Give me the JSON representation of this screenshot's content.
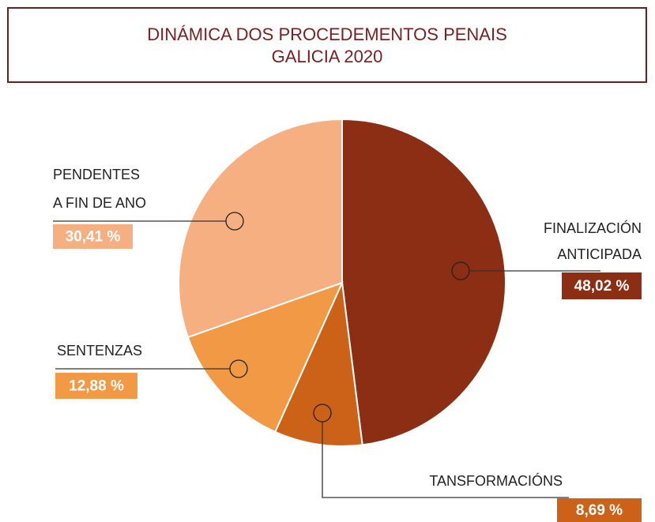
{
  "chart_data": {
    "type": "pie",
    "title": "DINÁMICA DOS PROCEDEMENTOS PENAIS",
    "subtitle": "GALICIA 2020",
    "categories": [
      [
        "FINALIZACIÓN",
        "ANTICIPADA"
      ],
      [
        "TANSFORMACIÓNS"
      ],
      [
        "SENTENZAS"
      ],
      [
        "PENDENTES",
        "A FIN DE ANO"
      ]
    ],
    "values": [
      48.02,
      8.69,
      12.88,
      30.41
    ],
    "value_labels": [
      "48,02 %",
      "8,69 %",
      "12,88 %",
      "30,41 %"
    ],
    "colors": [
      "#8b2e14",
      "#cc6218",
      "#f19945",
      "#f6af80"
    ]
  }
}
